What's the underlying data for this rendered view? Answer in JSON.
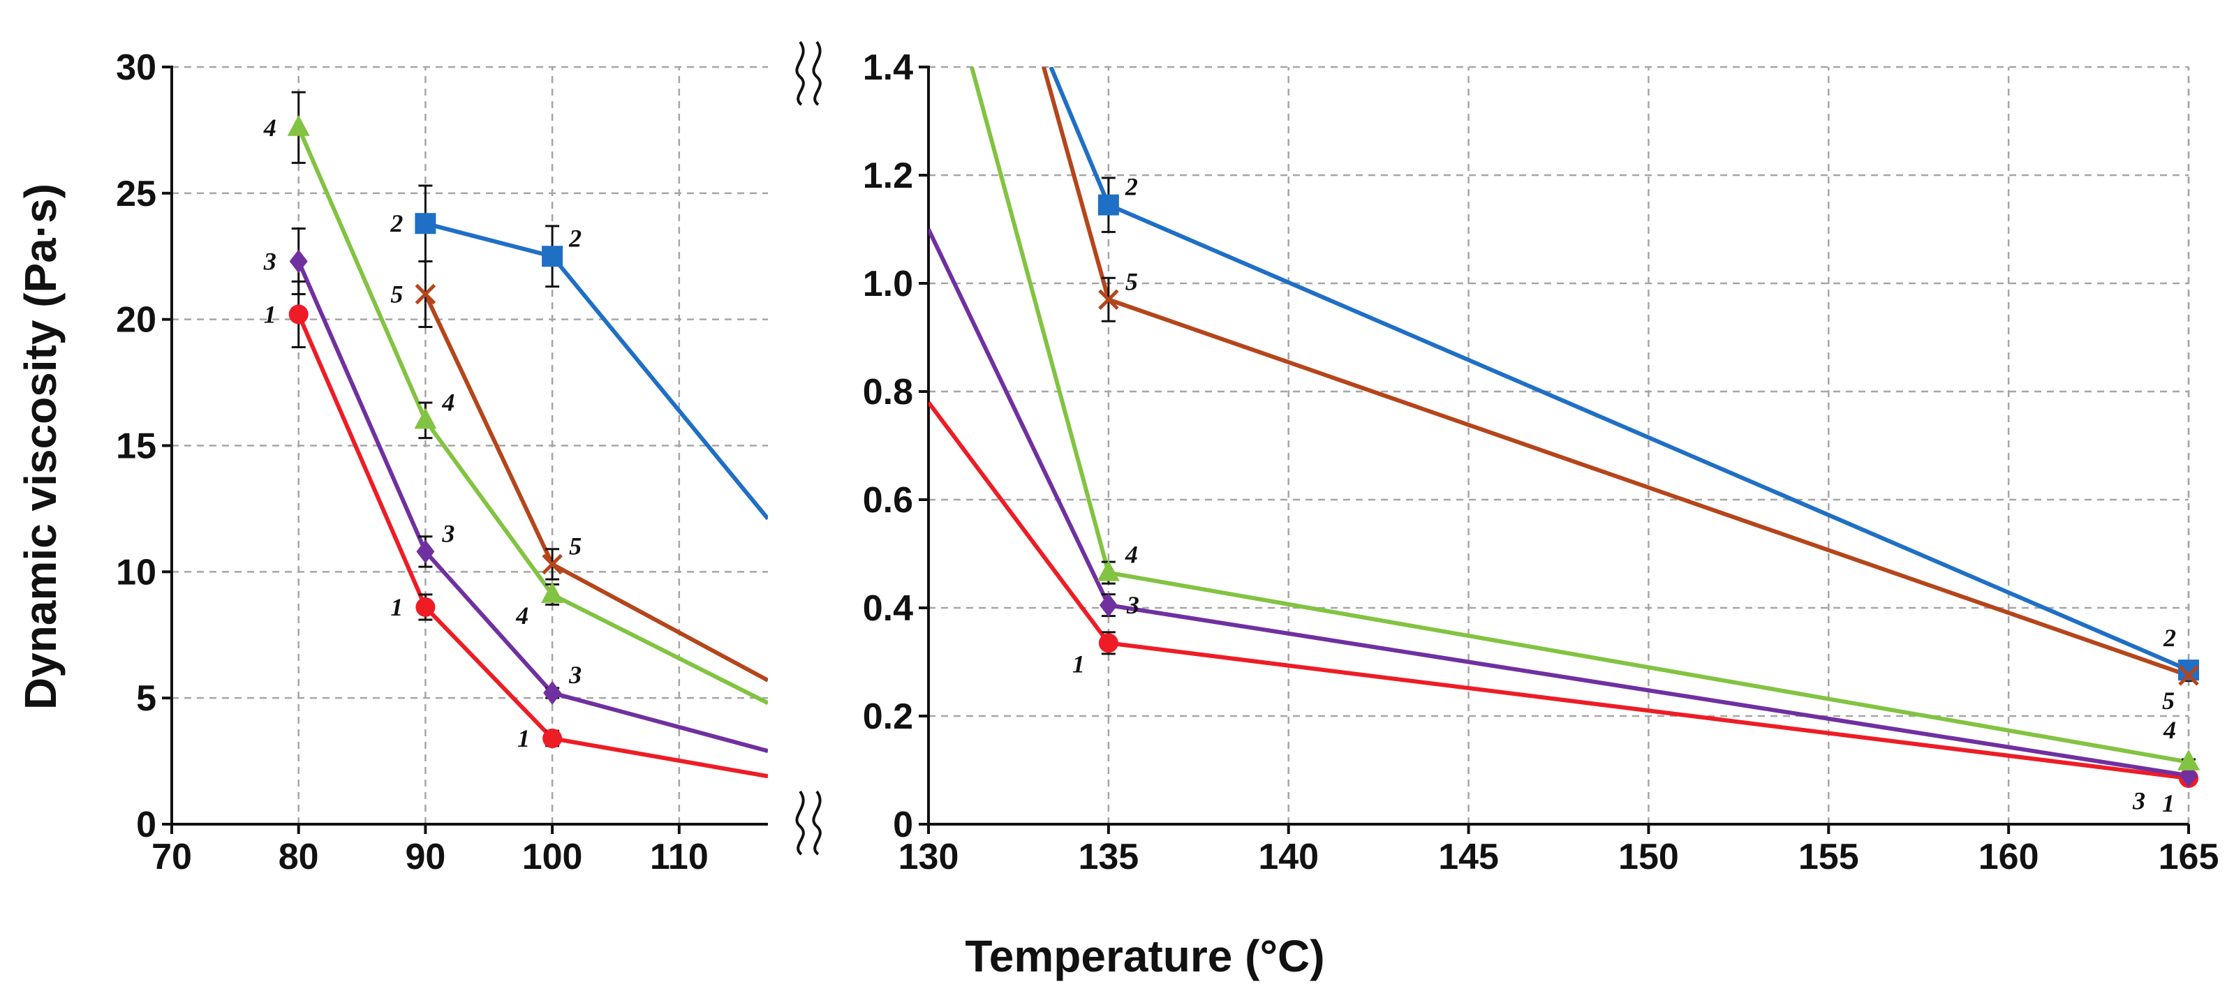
{
  "chart_data": {
    "type": "line",
    "ylabel": "Dynamic viscosity (Pa·s)",
    "xlabel": "Temperature (°C)",
    "left_panel": {
      "xlim": [
        70,
        117
      ],
      "ylim": [
        0,
        30
      ],
      "x_ticks": [
        "70",
        "80",
        "90",
        "100",
        "110"
      ],
      "y_ticks": [
        "0",
        "5",
        "10",
        "15",
        "20",
        "25",
        "30"
      ]
    },
    "right_panel": {
      "xlim": [
        130,
        165
      ],
      "ylim": [
        0,
        1.4
      ],
      "x_ticks": [
        "130",
        "135",
        "140",
        "145",
        "150",
        "155",
        "160",
        "165"
      ],
      "y_ticks": [
        "0",
        "0.2",
        "0.4",
        "0.6",
        "0.8",
        "1.0",
        "1.2",
        "1.4"
      ]
    },
    "series": [
      {
        "name": "1",
        "color": "#ee1c25",
        "marker": "circle",
        "left_points": [
          {
            "x": 80,
            "y": 20.2,
            "err": 1.3
          },
          {
            "x": 90,
            "y": 8.6,
            "err": 0.5
          },
          {
            "x": 100,
            "y": 3.4,
            "err": 0.3
          }
        ],
        "left_tail": {
          "x": 117,
          "y": 1.9
        },
        "right_head": {
          "x": 130,
          "y": 0.78
        },
        "right_points": [
          {
            "x": 135,
            "y": 0.335,
            "err": 0.02
          },
          {
            "x": 165,
            "y": 0.085,
            "err": 0.005
          }
        ]
      },
      {
        "name": "2",
        "color": "#1f6fc5",
        "marker": "square",
        "left_points": [
          {
            "x": 90,
            "y": 23.8,
            "err": 1.5
          },
          {
            "x": 100,
            "y": 22.5,
            "err": 1.2
          }
        ],
        "left_tail": {
          "x": 117,
          "y": 12.1
        },
        "right_head": {
          "x": 133.4,
          "y": 1.4
        },
        "right_points": [
          {
            "x": 135,
            "y": 1.145,
            "err": 0.05
          },
          {
            "x": 165,
            "y": 0.285,
            "err": 0.01
          }
        ]
      },
      {
        "name": "3",
        "color": "#7030a0",
        "marker": "diamond",
        "left_points": [
          {
            "x": 80,
            "y": 22.3,
            "err": 1.3
          },
          {
            "x": 90,
            "y": 10.8,
            "err": 0.6
          },
          {
            "x": 100,
            "y": 5.2,
            "err": 0.2
          }
        ],
        "left_tail": {
          "x": 117,
          "y": 2.9
        },
        "right_head": {
          "x": 130,
          "y": 1.1
        },
        "right_points": [
          {
            "x": 135,
            "y": 0.405,
            "err": 0.02
          },
          {
            "x": 165,
            "y": 0.09,
            "err": 0.005
          }
        ]
      },
      {
        "name": "4",
        "color": "#82c341",
        "marker": "triangle",
        "left_points": [
          {
            "x": 80,
            "y": 27.6,
            "err": 1.4
          },
          {
            "x": 90,
            "y": 16.0,
            "err": 0.7
          },
          {
            "x": 100,
            "y": 9.1,
            "err": 0.4
          }
        ],
        "left_tail": {
          "x": 117,
          "y": 4.8
        },
        "right_head": {
          "x": 131.2,
          "y": 1.4
        },
        "right_points": [
          {
            "x": 135,
            "y": 0.465,
            "err": 0.02
          },
          {
            "x": 165,
            "y": 0.115,
            "err": 0.005
          }
        ]
      },
      {
        "name": "5",
        "color": "#b5451b",
        "marker": "x",
        "left_points": [
          {
            "x": 90,
            "y": 21.0,
            "err": 1.3
          },
          {
            "x": 100,
            "y": 10.3,
            "err": 0.6
          }
        ],
        "left_tail": {
          "x": 117,
          "y": 5.7
        },
        "right_head": {
          "x": 133.2,
          "y": 1.4
        },
        "right_points": [
          {
            "x": 135,
            "y": 0.97,
            "err": 0.04
          },
          {
            "x": 165,
            "y": 0.275,
            "err": 0.01
          }
        ]
      }
    ],
    "point_labels": [
      {
        "series": "1",
        "panel": "left",
        "x": 80,
        "y": 20.2,
        "text": "1",
        "side": "left"
      },
      {
        "series": "1",
        "panel": "left",
        "x": 90,
        "y": 8.6,
        "text": "1",
        "side": "left"
      },
      {
        "series": "1",
        "panel": "left",
        "x": 100,
        "y": 3.4,
        "text": "1",
        "side": "left"
      },
      {
        "series": "2",
        "panel": "left",
        "x": 90,
        "y": 23.8,
        "text": "2",
        "side": "left"
      },
      {
        "series": "2",
        "panel": "left",
        "x": 100,
        "y": 22.5,
        "text": "2",
        "side": "right-up"
      },
      {
        "series": "3",
        "panel": "left",
        "x": 80,
        "y": 22.3,
        "text": "3",
        "side": "left"
      },
      {
        "series": "3",
        "panel": "left",
        "x": 90,
        "y": 10.8,
        "text": "3",
        "side": "right-up"
      },
      {
        "series": "3",
        "panel": "left",
        "x": 100,
        "y": 5.2,
        "text": "3",
        "side": "right-up"
      },
      {
        "series": "4",
        "panel": "left",
        "x": 80,
        "y": 27.6,
        "text": "4",
        "side": "left"
      },
      {
        "series": "4",
        "panel": "left",
        "x": 90,
        "y": 16.0,
        "text": "4",
        "side": "right-up"
      },
      {
        "series": "4",
        "panel": "left",
        "x": 100,
        "y": 9.1,
        "text": "4",
        "side": "left-down"
      },
      {
        "series": "5",
        "panel": "left",
        "x": 90,
        "y": 21.0,
        "text": "5",
        "side": "left"
      },
      {
        "series": "5",
        "panel": "left",
        "x": 100,
        "y": 10.3,
        "text": "5",
        "side": "right-up"
      },
      {
        "series": "1",
        "panel": "right",
        "x": 135,
        "y": 0.335,
        "text": "1",
        "side": "left-down"
      },
      {
        "series": "2",
        "panel": "right",
        "x": 135,
        "y": 1.145,
        "text": "2",
        "side": "right-up"
      },
      {
        "series": "3",
        "panel": "right",
        "x": 135,
        "y": 0.405,
        "text": "3",
        "side": "right"
      },
      {
        "series": "4",
        "panel": "right",
        "x": 135,
        "y": 0.465,
        "text": "4",
        "side": "right-up"
      },
      {
        "series": "5",
        "panel": "right",
        "x": 135,
        "y": 0.97,
        "text": "5",
        "side": "right-up"
      },
      {
        "series": "2",
        "panel": "right",
        "x": 165,
        "y": 0.285,
        "text": "2",
        "side": "end-above"
      },
      {
        "series": "5",
        "panel": "right",
        "x": 165,
        "y": 0.275,
        "text": "5",
        "side": "end-below"
      },
      {
        "series": "4",
        "panel": "right",
        "x": 165,
        "y": 0.115,
        "text": "4",
        "side": "end-above"
      },
      {
        "series": "3",
        "panel": "right",
        "x": 165,
        "y": 0.09,
        "text": "3",
        "side": "end-below-left"
      },
      {
        "series": "1",
        "panel": "right",
        "x": 165,
        "y": 0.085,
        "text": "1",
        "side": "end-below"
      }
    ]
  }
}
